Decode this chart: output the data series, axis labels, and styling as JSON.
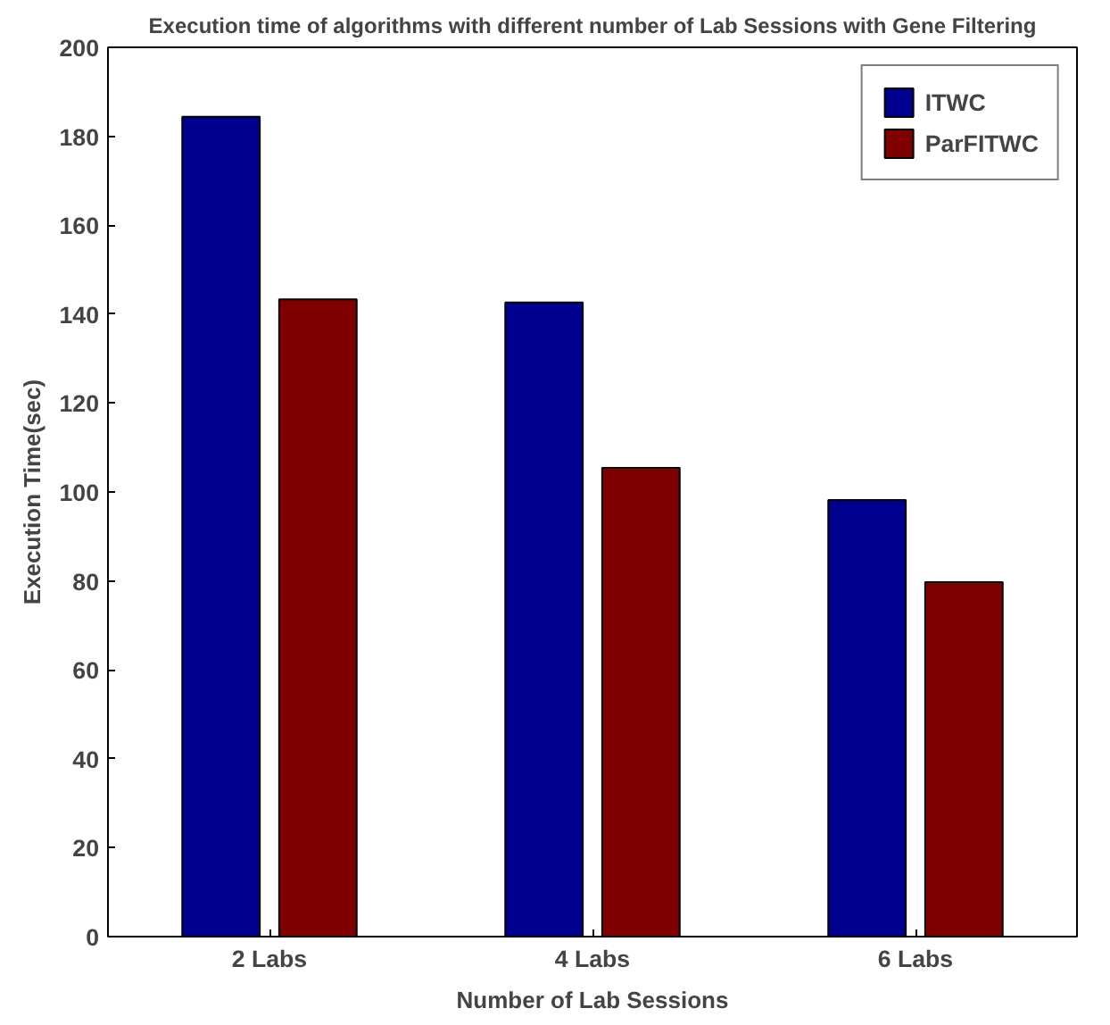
{
  "chart_data": {
    "type": "bar",
    "title": "Execution time of algorithms with different number of Lab Sessions with Gene Filtering",
    "xlabel": "Number of Lab Sessions",
    "ylabel": "Execution Time(sec)",
    "categories": [
      "2 Labs",
      "4 Labs",
      "6 Labs"
    ],
    "series": [
      {
        "name": "ITWC",
        "color": "#000090",
        "values": [
          184.4,
          142.6,
          98.2
        ]
      },
      {
        "name": "ParFITWC",
        "color": "#800000",
        "values": [
          143.3,
          105.4,
          79.7
        ]
      }
    ],
    "ylim": [
      0,
      200
    ],
    "yticks": [
      0,
      20,
      40,
      60,
      80,
      100,
      120,
      140,
      160,
      180,
      200
    ],
    "legend": "top right",
    "grid": false
  }
}
